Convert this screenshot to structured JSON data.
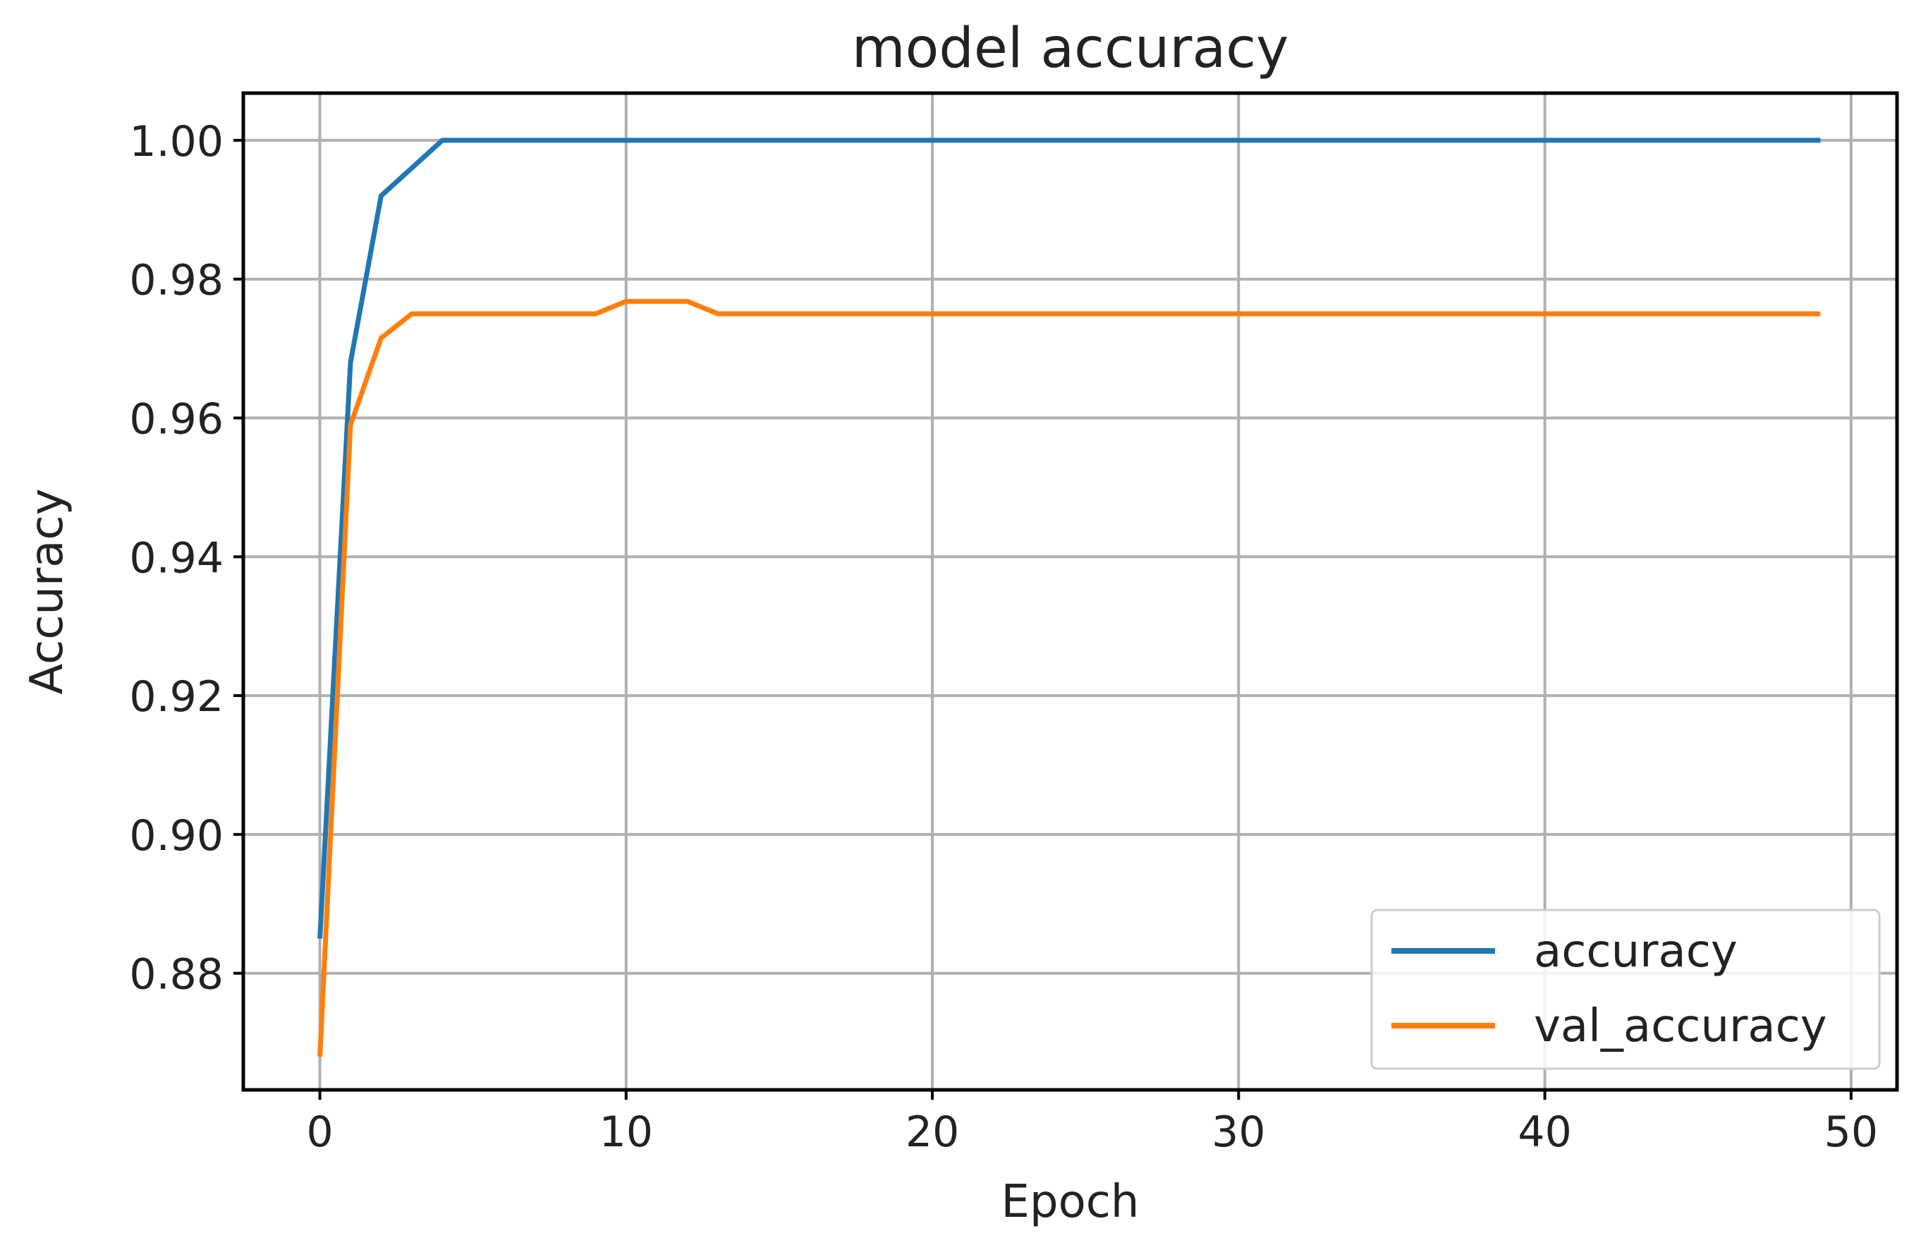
{
  "chart_data": {
    "type": "line",
    "title": "model accuracy",
    "xlabel": "Epoch",
    "ylabel": "Accuracy",
    "xlim": [
      -2.5,
      51.5
    ],
    "ylim": [
      0.8632,
      1.0068
    ],
    "xticks": [
      0,
      10,
      20,
      30,
      40,
      50
    ],
    "xtick_labels": [
      "0",
      "10",
      "20",
      "30",
      "40",
      "50"
    ],
    "yticks": [
      0.88,
      0.9,
      0.92,
      0.94,
      0.96,
      0.98,
      1.0
    ],
    "ytick_labels": [
      "0.88",
      "0.90",
      "0.92",
      "0.94",
      "0.96",
      "0.98",
      "1.00"
    ],
    "grid": true,
    "legend_position": "lower-right",
    "x": [
      0,
      1,
      2,
      3,
      4,
      5,
      6,
      7,
      8,
      9,
      10,
      11,
      12,
      13,
      14,
      15,
      16,
      17,
      18,
      19,
      20,
      21,
      22,
      23,
      24,
      25,
      26,
      27,
      28,
      29,
      30,
      31,
      32,
      33,
      34,
      35,
      36,
      37,
      38,
      39,
      40,
      41,
      42,
      43,
      44,
      45,
      46,
      47,
      48,
      49
    ],
    "series": [
      {
        "name": "accuracy",
        "color": "#1f77b4",
        "values": [
          0.885,
          0.968,
          0.992,
          0.996,
          1.0,
          1.0,
          1.0,
          1.0,
          1.0,
          1.0,
          1.0,
          1.0,
          1.0,
          1.0,
          1.0,
          1.0,
          1.0,
          1.0,
          1.0,
          1.0,
          1.0,
          1.0,
          1.0,
          1.0,
          1.0,
          1.0,
          1.0,
          1.0,
          1.0,
          1.0,
          1.0,
          1.0,
          1.0,
          1.0,
          1.0,
          1.0,
          1.0,
          1.0,
          1.0,
          1.0,
          1.0,
          1.0,
          1.0,
          1.0,
          1.0,
          1.0,
          1.0,
          1.0,
          1.0,
          1.0
        ]
      },
      {
        "name": "val_accuracy",
        "color": "#ff7f0e",
        "values": [
          0.868,
          0.959,
          0.9715,
          0.975,
          0.975,
          0.975,
          0.975,
          0.975,
          0.975,
          0.975,
          0.9768,
          0.9768,
          0.9768,
          0.975,
          0.975,
          0.975,
          0.975,
          0.975,
          0.975,
          0.975,
          0.975,
          0.975,
          0.975,
          0.975,
          0.975,
          0.975,
          0.975,
          0.975,
          0.975,
          0.975,
          0.975,
          0.975,
          0.975,
          0.975,
          0.975,
          0.975,
          0.975,
          0.975,
          0.975,
          0.975,
          0.975,
          0.975,
          0.975,
          0.975,
          0.975,
          0.975,
          0.975,
          0.975,
          0.975,
          0.975
        ]
      }
    ]
  }
}
